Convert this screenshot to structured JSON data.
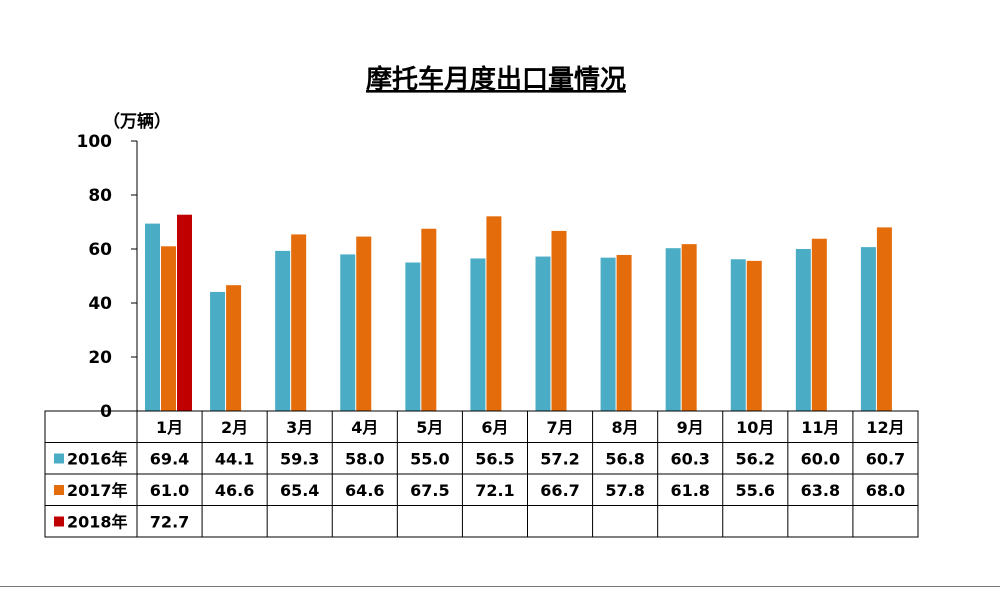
{
  "chart_data": {
    "type": "bar",
    "title": "摩托车月度出口量情况",
    "unit_label": "（万辆）",
    "ylim": [
      0,
      100
    ],
    "yticks": [
      "0",
      "20",
      "40",
      "60",
      "80",
      "100"
    ],
    "categories": [
      "1月",
      "2月",
      "3月",
      "4月",
      "5月",
      "6月",
      "7月",
      "8月",
      "9月",
      "10月",
      "11月",
      "12月"
    ],
    "series": [
      {
        "name": "2016年",
        "color": "#4BACC6",
        "values": [
          69.4,
          44.1,
          59.3,
          58.0,
          55.0,
          56.5,
          57.2,
          56.8,
          60.3,
          56.2,
          60.0,
          60.7
        ],
        "labels": [
          "69.4",
          "44.1",
          "59.3",
          "58.0",
          "55.0",
          "56.5",
          "57.2",
          "56.8",
          "60.3",
          "56.2",
          "60.0",
          "60.7"
        ]
      },
      {
        "name": "2017年",
        "color": "#E46C0A",
        "values": [
          61.0,
          46.6,
          65.4,
          64.6,
          67.5,
          72.1,
          66.7,
          57.8,
          61.8,
          55.6,
          63.8,
          68.0
        ],
        "labels": [
          "61.0",
          "46.6",
          "65.4",
          "64.6",
          "67.5",
          "72.1",
          "66.7",
          "57.8",
          "61.8",
          "55.6",
          "63.8",
          "68.0"
        ]
      },
      {
        "name": "2018年",
        "color": "#C00000",
        "values": [
          72.7,
          null,
          null,
          null,
          null,
          null,
          null,
          null,
          null,
          null,
          null,
          null
        ],
        "labels": [
          "72.7",
          "",
          "",
          "",
          "",
          "",
          "",
          "",
          "",
          "",
          "",
          ""
        ]
      }
    ],
    "grid": false,
    "legend": "data-table"
  }
}
